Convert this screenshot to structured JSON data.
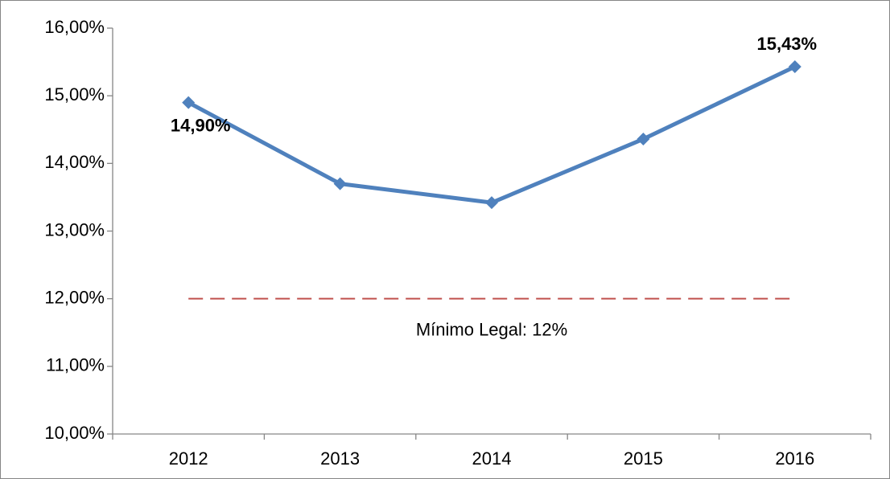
{
  "chart_data": {
    "type": "line",
    "categories": [
      "2012",
      "2013",
      "2014",
      "2015",
      "2016"
    ],
    "series": [
      {
        "color": "#4f81bd",
        "values": [
          14.9,
          13.7,
          13.42,
          14.36,
          15.43
        ],
        "value_labels": [
          "14,90%",
          null,
          null,
          null,
          "15,43%"
        ]
      }
    ],
    "ylim": [
      10,
      16
    ],
    "yticks": [
      {
        "value": 10,
        "label": "10,00%"
      },
      {
        "value": 11,
        "label": "11,00%"
      },
      {
        "value": 12,
        "label": "12,00%"
      },
      {
        "value": 13,
        "label": "13,00%"
      },
      {
        "value": 14,
        "label": "14,00%"
      },
      {
        "value": 15,
        "label": "15,00%"
      },
      {
        "value": 16,
        "label": "16,00%"
      }
    ],
    "reference_line": {
      "value": 12,
      "color": "#c0504d",
      "label": "Mínimo Legal: 12%"
    }
  }
}
